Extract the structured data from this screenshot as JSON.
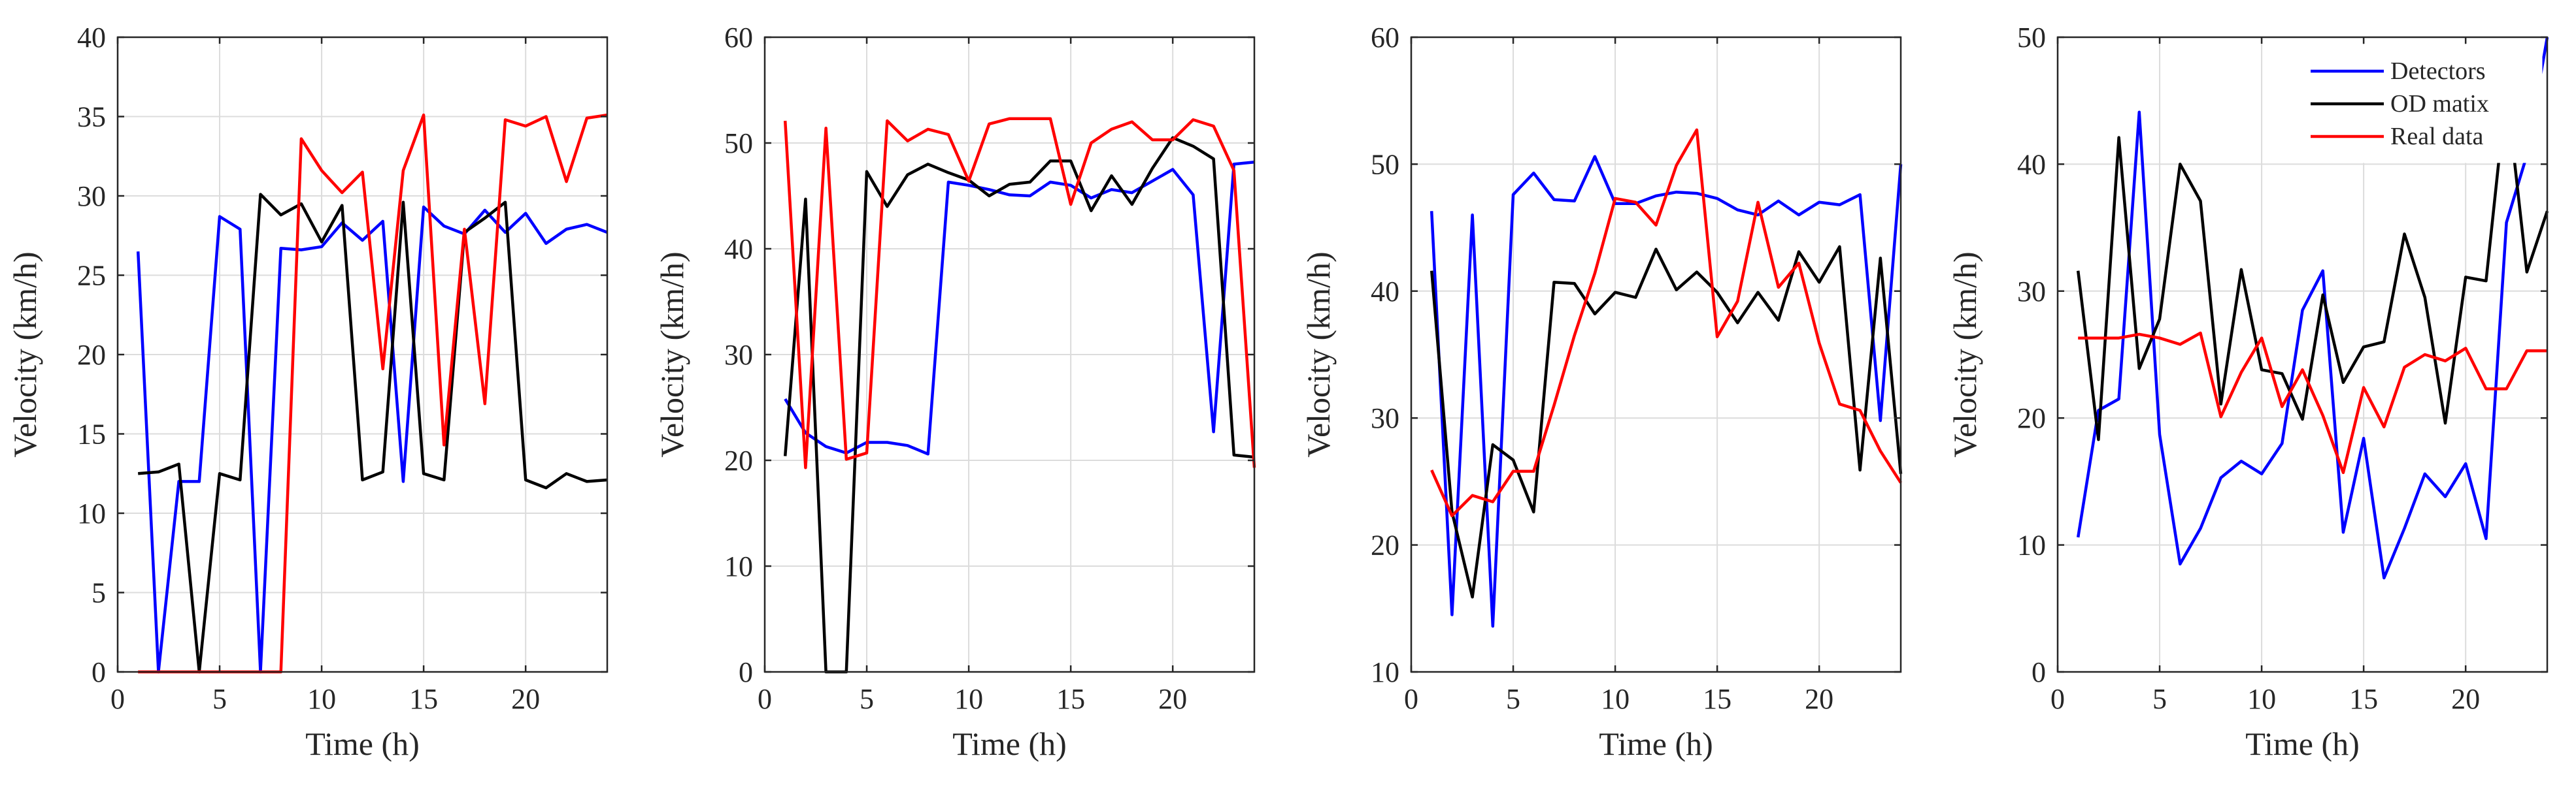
{
  "chart_data": [
    {
      "type": "line",
      "panel": 1,
      "title": "",
      "xlabel": "Time (h)",
      "ylabel": "Velocity (km/h)",
      "xlim": [
        0,
        24
      ],
      "ylim": [
        0,
        40
      ],
      "xticks": [
        0,
        5,
        10,
        15,
        20
      ],
      "xtick_labels": [
        "0",
        "5",
        "10",
        "15",
        "20"
      ],
      "yticks": [
        0,
        5,
        10,
        15,
        20,
        25,
        30,
        35,
        40
      ],
      "ytick_labels": [
        "0",
        "5",
        "10",
        "15",
        "20",
        "25",
        "30",
        "35",
        "40"
      ],
      "grid": true,
      "legend": null,
      "x": [
        1,
        2,
        3,
        4,
        5,
        6,
        7,
        8,
        9,
        10,
        11,
        12,
        13,
        14,
        15,
        16,
        17,
        18,
        19,
        20,
        21,
        22,
        23,
        24
      ],
      "series": [
        {
          "name": "Detectors",
          "color": "#0000ff",
          "values": [
            26.5,
            0,
            12,
            12,
            28.7,
            27.9,
            0,
            26.7,
            26.6,
            26.8,
            28.3,
            27.2,
            28.4,
            12,
            29.3,
            28.1,
            27.6,
            29.1,
            27.7,
            28.9,
            27,
            27.9,
            28.2,
            27.7
          ]
        },
        {
          "name": "OD matix",
          "color": "#000000",
          "values": [
            12.5,
            12.6,
            13.1,
            0,
            12.5,
            12.1,
            30.1,
            28.8,
            29.5,
            27.1,
            29.4,
            12.1,
            12.6,
            29.6,
            12.5,
            12.1,
            27.7,
            28.6,
            29.6,
            12.1,
            11.6,
            12.5,
            12,
            12.1
          ]
        },
        {
          "name": "Real data",
          "color": "#ff0000",
          "values": [
            0,
            0,
            0,
            0,
            0,
            0,
            0,
            0,
            33.6,
            31.6,
            30.2,
            31.5,
            19.1,
            31.6,
            35.1,
            14.3,
            27.9,
            16.9,
            34.8,
            34.4,
            35,
            30.9,
            34.9,
            35.1
          ]
        }
      ]
    },
    {
      "type": "line",
      "panel": 2,
      "title": "",
      "xlabel": "Time (h)",
      "ylabel": "Velocity (km/h)",
      "xlim": [
        0,
        24
      ],
      "ylim": [
        0,
        60
      ],
      "xticks": [
        0,
        5,
        10,
        15,
        20
      ],
      "xtick_labels": [
        "0",
        "5",
        "10",
        "15",
        "20"
      ],
      "yticks": [
        0,
        10,
        20,
        30,
        40,
        50,
        60
      ],
      "ytick_labels": [
        "0",
        "10",
        "20",
        "30",
        "40",
        "50",
        "60"
      ],
      "grid": true,
      "legend": null,
      "x": [
        1,
        2,
        3,
        4,
        5,
        6,
        7,
        8,
        9,
        10,
        11,
        12,
        13,
        14,
        15,
        16,
        17,
        18,
        19,
        20,
        21,
        22,
        23,
        24
      ],
      "series": [
        {
          "name": "Detectors",
          "color": "#0000ff",
          "values": [
            25.8,
            22.6,
            21.3,
            20.7,
            21.7,
            21.7,
            21.4,
            20.6,
            46.3,
            46,
            45.6,
            45.1,
            45,
            46.3,
            46,
            44.8,
            45.6,
            45.3,
            46.4,
            47.5,
            45.1,
            22.7,
            48,
            48.2
          ]
        },
        {
          "name": "OD matix",
          "color": "#000000",
          "values": [
            20.4,
            44.7,
            0,
            0,
            47.3,
            44,
            47,
            48,
            47.2,
            46.5,
            45,
            46.1,
            46.3,
            48.3,
            48.3,
            43.6,
            46.9,
            44.2,
            47.6,
            50.5,
            49.7,
            48.5,
            20.5,
            20.3
          ]
        },
        {
          "name": "Real data",
          "color": "#ff0000",
          "values": [
            52.1,
            19.3,
            51.4,
            20.1,
            20.7,
            52.1,
            50.2,
            51.3,
            50.8,
            46.4,
            51.8,
            52.3,
            52.3,
            52.3,
            44.2,
            50,
            51.3,
            52,
            50.3,
            50.3,
            52.2,
            51.6,
            47.4,
            19.3
          ]
        }
      ]
    },
    {
      "type": "line",
      "panel": 3,
      "title": "",
      "xlabel": "Time (h)",
      "ylabel": "Velocity (km/h)",
      "xlim": [
        0,
        24
      ],
      "ylim": [
        10,
        60
      ],
      "xticks": [
        0,
        5,
        10,
        15,
        20
      ],
      "xtick_labels": [
        "0",
        "5",
        "10",
        "15",
        "20"
      ],
      "yticks": [
        10,
        20,
        30,
        40,
        50,
        60
      ],
      "ytick_labels": [
        "10",
        "20",
        "30",
        "40",
        "50",
        "60"
      ],
      "grid": true,
      "legend": null,
      "x": [
        1,
        2,
        3,
        4,
        5,
        6,
        7,
        8,
        9,
        10,
        11,
        12,
        13,
        14,
        15,
        16,
        17,
        18,
        19,
        20,
        21,
        22,
        23,
        24
      ],
      "series": [
        {
          "name": "Detectors",
          "color": "#0000ff",
          "values": [
            46.3,
            14.5,
            46,
            13.6,
            47.6,
            49.3,
            47.2,
            47.1,
            50.6,
            46.9,
            46.9,
            47.5,
            47.8,
            47.7,
            47.3,
            46.4,
            46,
            47.1,
            46,
            47,
            46.8,
            47.6,
            29.8,
            50
          ]
        },
        {
          "name": "OD matix",
          "color": "#000000",
          "values": [
            41.6,
            22.6,
            15.9,
            27.9,
            26.7,
            22.6,
            40.7,
            40.6,
            38.2,
            39.9,
            39.5,
            43.3,
            40.1,
            41.5,
            39.9,
            37.5,
            39.9,
            37.7,
            43.1,
            40.7,
            43.5,
            25.9,
            42.6,
            25.6
          ]
        },
        {
          "name": "Real data",
          "color": "#ff0000",
          "values": [
            25.9,
            22.3,
            23.9,
            23.4,
            25.8,
            25.8,
            31,
            36.5,
            41.4,
            47.3,
            47,
            45.2,
            49.9,
            52.7,
            36.4,
            39.2,
            47,
            40.3,
            42.2,
            35.9,
            31.1,
            30.6,
            27.4,
            24.9
          ]
        }
      ]
    },
    {
      "type": "line",
      "panel": 4,
      "title": "",
      "xlabel": "Time (h)",
      "ylabel": "Velocity (km/h)",
      "xlim": [
        0,
        24
      ],
      "ylim": [
        0,
        50
      ],
      "xticks": [
        0,
        5,
        10,
        15,
        20
      ],
      "xtick_labels": [
        "0",
        "5",
        "10",
        "15",
        "20"
      ],
      "yticks": [
        0,
        10,
        20,
        30,
        40,
        50
      ],
      "ytick_labels": [
        "0",
        "10",
        "20",
        "30",
        "40",
        "50"
      ],
      "grid": true,
      "legend": "top-right",
      "x": [
        1,
        2,
        3,
        4,
        5,
        6,
        7,
        8,
        9,
        10,
        11,
        12,
        13,
        14,
        15,
        16,
        17,
        18,
        19,
        20,
        21,
        22,
        23,
        24
      ],
      "series": [
        {
          "name": "Detectors",
          "color": "#0000ff",
          "values": [
            10.6,
            20.6,
            21.5,
            44.1,
            18.7,
            8.5,
            11.3,
            15.3,
            16.6,
            15.6,
            18,
            28.5,
            31.6,
            11,
            18.4,
            7.4,
            11.3,
            15.6,
            13.8,
            16.4,
            10.5,
            35.4,
            40.7,
            50
          ]
        },
        {
          "name": "OD matix",
          "color": "#000000",
          "values": [
            31.6,
            18.3,
            42.1,
            23.9,
            27.8,
            40,
            37.1,
            21.1,
            31.7,
            23.8,
            23.5,
            19.9,
            29.7,
            22.8,
            25.6,
            26,
            34.5,
            29.5,
            19.6,
            31.1,
            30.8,
            45.9,
            31.5,
            36.3
          ]
        },
        {
          "name": "Real data",
          "color": "#ff0000",
          "values": [
            26.3,
            26.3,
            26.3,
            26.6,
            26.3,
            25.8,
            26.7,
            20.1,
            23.6,
            26.3,
            20.9,
            23.8,
            20.2,
            15.7,
            22.4,
            19.3,
            24,
            25,
            24.5,
            25.5,
            22.3,
            22.3,
            25.3,
            25.3
          ]
        }
      ]
    }
  ]
}
